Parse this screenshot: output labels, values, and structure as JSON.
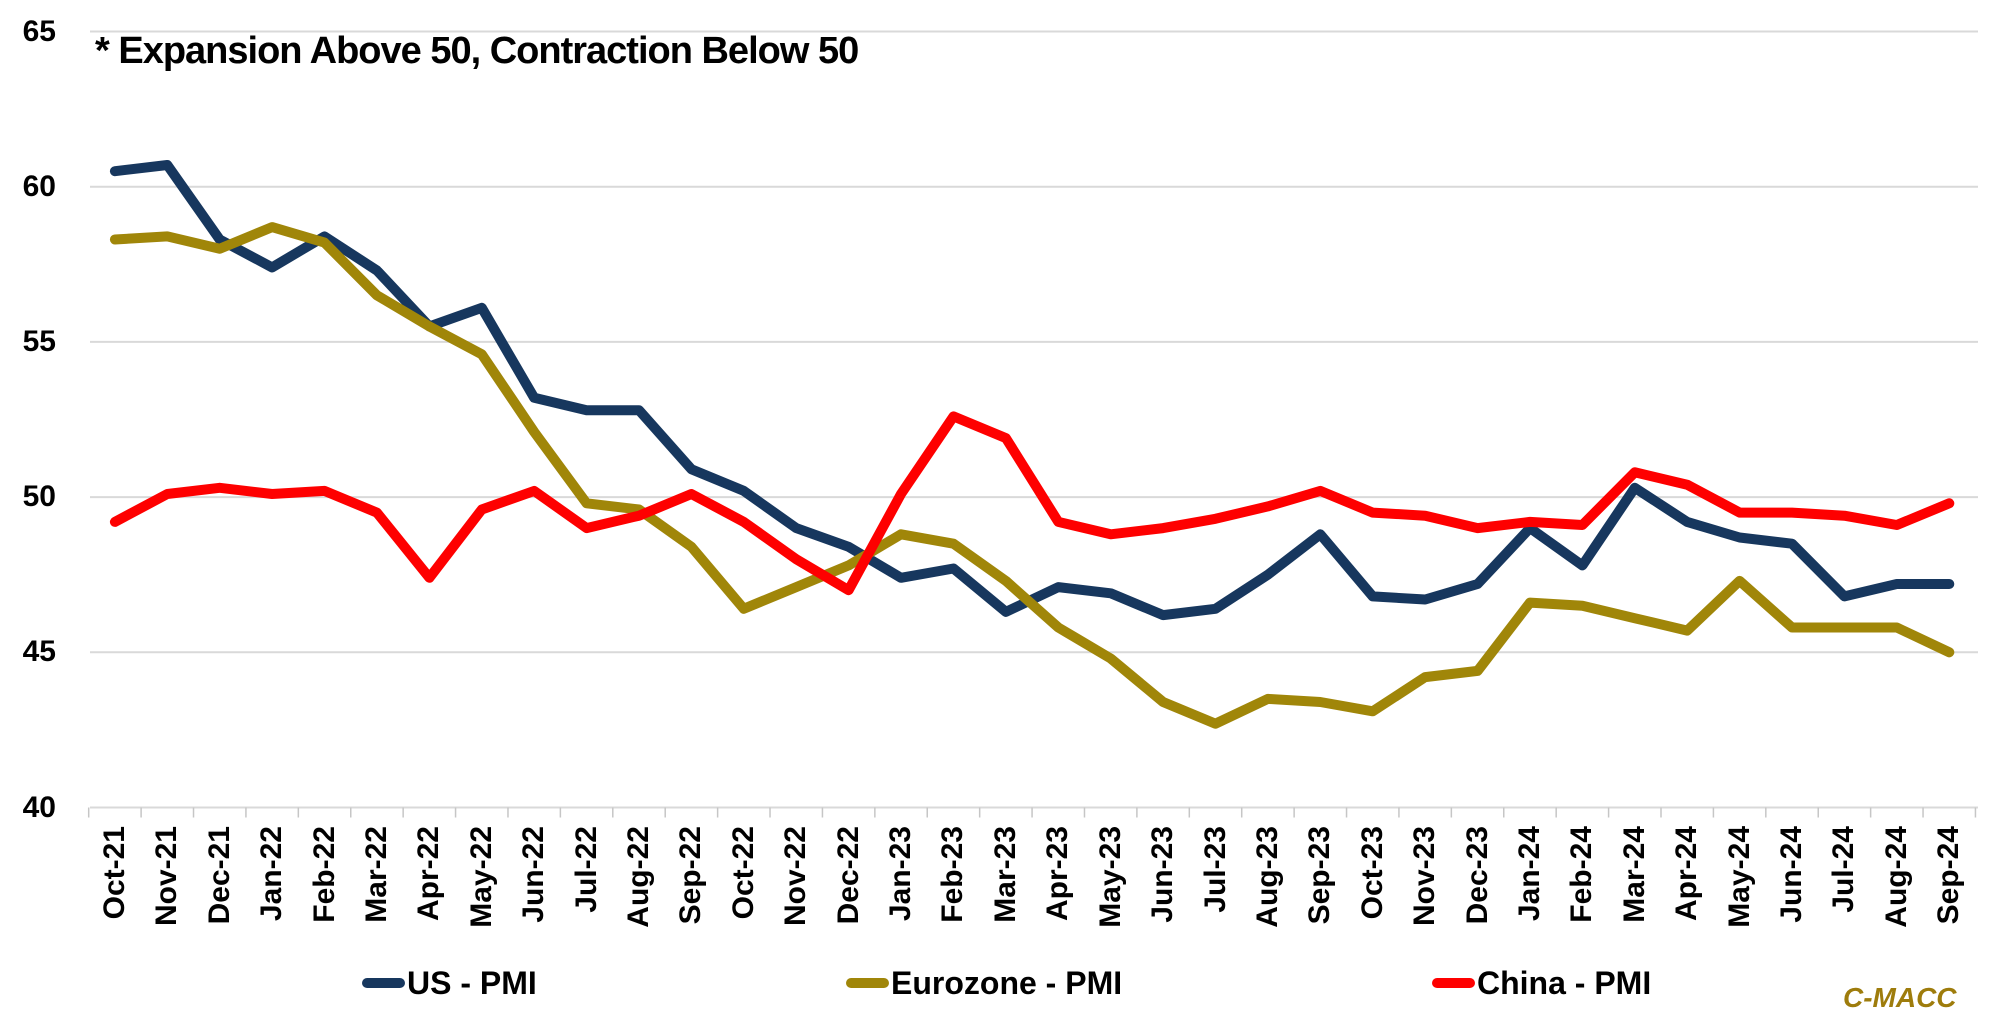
{
  "note": "* Expansion Above 50, Contraction Below 50",
  "watermark": "C-MACC",
  "colors": {
    "background": "#FFFFFF",
    "gridline": "#D9D9D9",
    "tick": "#C6C6C6",
    "text": "#000000",
    "us": "#17375E",
    "eurozone": "#A08609",
    "china": "#FE0000",
    "watermark": "#9E7C0C"
  },
  "y_axis": {
    "min": 40,
    "max": 65,
    "step": 5,
    "tick_labels": [
      "65",
      "60",
      "55",
      "50",
      "45",
      "40"
    ]
  },
  "legend": {
    "position": "bottom",
    "items": [
      {
        "id": "us",
        "label": "US - PMI",
        "color": "#17375E"
      },
      {
        "id": "eurozone",
        "label": "Eurozone - PMI",
        "color": "#A08609"
      },
      {
        "id": "china",
        "label": "China - PMI",
        "color": "#FE0000"
      }
    ]
  },
  "chart_data": {
    "type": "line",
    "title": "",
    "xlabel": "",
    "ylabel": "",
    "ylim": [
      40,
      65
    ],
    "y_gridlines": [
      40,
      45,
      50,
      55,
      60,
      65
    ],
    "grid": "horizontal",
    "legend_position": "bottom",
    "annotation": "* Expansion Above 50, Contraction Below 50",
    "categories": [
      "Oct-21",
      "Nov-21",
      "Dec-21",
      "Jan-22",
      "Feb-22",
      "Mar-22",
      "Apr-22",
      "May-22",
      "Jun-22",
      "Jul-22",
      "Aug-22",
      "Sep-22",
      "Oct-22",
      "Nov-22",
      "Dec-22",
      "Jan-23",
      "Feb-23",
      "Mar-23",
      "Apr-23",
      "May-23",
      "Jun-23",
      "Jul-23",
      "Aug-23",
      "Sep-23",
      "Oct-23",
      "Nov-23",
      "Dec-23",
      "Jan-24",
      "Feb-24",
      "Mar-24",
      "Apr-24",
      "May-24",
      "Jun-24",
      "Jul-24",
      "Aug-24",
      "Sep-24"
    ],
    "series": [
      {
        "id": "us",
        "name": "US - PMI",
        "color": "#17375E",
        "values": [
          60.5,
          60.7,
          58.3,
          57.4,
          58.4,
          57.3,
          55.5,
          56.1,
          53.2,
          52.8,
          52.8,
          50.9,
          50.2,
          49.0,
          48.4,
          47.4,
          47.7,
          46.3,
          47.1,
          46.9,
          46.2,
          46.4,
          47.5,
          48.8,
          46.8,
          46.7,
          47.2,
          49.0,
          47.8,
          50.3,
          49.2,
          48.7,
          48.5,
          46.8,
          47.2,
          47.2
        ]
      },
      {
        "id": "eurozone",
        "name": "Eurozone - PMI",
        "color": "#A08609",
        "values": [
          58.3,
          58.4,
          58.0,
          58.7,
          58.2,
          56.5,
          55.5,
          54.6,
          52.1,
          49.8,
          49.6,
          48.4,
          46.4,
          47.1,
          47.8,
          48.8,
          48.5,
          47.3,
          45.8,
          44.8,
          43.4,
          42.7,
          43.5,
          43.4,
          43.1,
          44.2,
          44.4,
          46.6,
          46.5,
          46.1,
          45.7,
          47.3,
          45.8,
          45.8,
          45.8,
          45.0
        ]
      },
      {
        "id": "china",
        "name": "China - PMI",
        "color": "#FE0000",
        "values": [
          49.2,
          50.1,
          50.3,
          50.1,
          50.2,
          49.5,
          47.4,
          49.6,
          50.2,
          49.0,
          49.4,
          50.1,
          49.2,
          48.0,
          47.0,
          50.1,
          52.6,
          51.9,
          49.2,
          48.8,
          49.0,
          49.3,
          49.7,
          50.2,
          49.5,
          49.4,
          49.0,
          49.2,
          49.1,
          50.8,
          50.4,
          49.5,
          49.5,
          49.4,
          49.1,
          49.8
        ]
      }
    ]
  }
}
